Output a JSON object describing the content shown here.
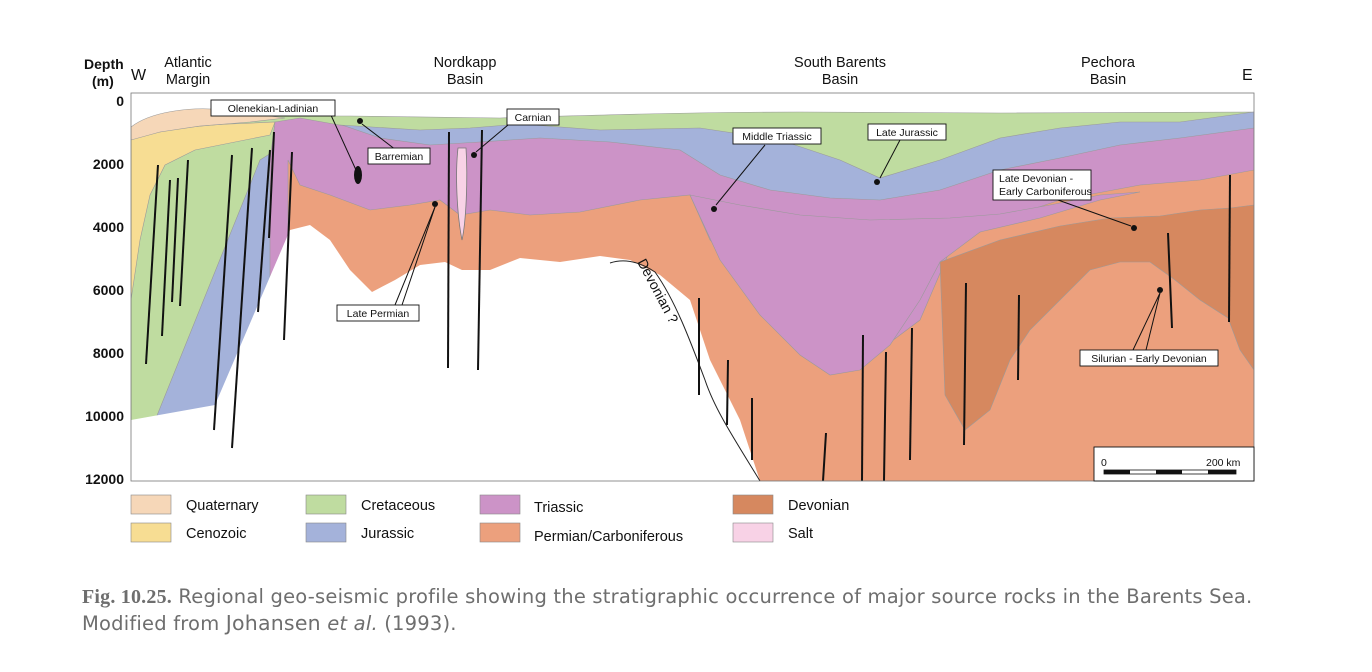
{
  "header": {
    "depth_label": "Depth",
    "depth_unit": "(m)",
    "west": "W",
    "east": "E",
    "basins": [
      {
        "line1": "Atlantic",
        "line2": "Margin"
      },
      {
        "line1": "Nordkapp",
        "line2": "Basin"
      },
      {
        "line1": "South Barents",
        "line2": "Basin"
      },
      {
        "line1": "Pechora",
        "line2": "Basin"
      }
    ]
  },
  "depth_ticks": [
    "0",
    "2000",
    "4000",
    "6000",
    "8000",
    "10000",
    "12000"
  ],
  "annotations": {
    "olenekian": "Olenekian-Ladinian",
    "barremian": "Barremian",
    "carnian": "Carnian",
    "middle_triassic": "Middle Triassic",
    "late_jurassic": "Late Jurassic",
    "late_devonian_1": "Late Devonian -",
    "late_devonian_2": "Early Carboniferous",
    "late_permian": "Late Permian",
    "silurian": "Silurian - Early Devonian",
    "devonian_q": "Devonian ?"
  },
  "scale_bar": {
    "start": "0",
    "end": "200 km"
  },
  "legend": [
    {
      "name": "Quaternary",
      "color": "#f6d7b8"
    },
    {
      "name": "Cenozoic",
      "color": "#f7dd93"
    },
    {
      "name": "Cretaceous",
      "color": "#bfdca0"
    },
    {
      "name": "Jurassic",
      "color": "#a4b2da"
    },
    {
      "name": "Triassic",
      "color": "#cc93c7"
    },
    {
      "name": "Permian/Carboniferous",
      "color": "#eca07d"
    },
    {
      "name": "Devonian",
      "color": "#d6885f"
    },
    {
      "name": "Salt",
      "color": "#f8d2e6"
    }
  ],
  "caption": {
    "label": "Fig. 10.25.",
    "text": " Regional geo-seismic profile showing the stratigraphic occurrence of major source rocks in the Barents Sea. Modified from ",
    "author": "Johansen",
    "etal": "et al.",
    "year": " (1993)."
  }
}
